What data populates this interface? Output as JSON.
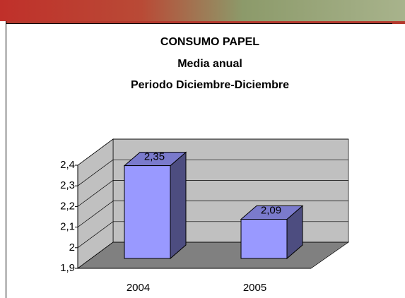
{
  "chart_data": {
    "type": "bar3d",
    "title": "CONSUMO PAPEL",
    "subtitle": [
      "Media anual",
      "Periodo Diciembre-Diciembre"
    ],
    "categories": [
      "2004",
      "2005"
    ],
    "values": [
      2.35,
      2.09
    ],
    "value_labels": [
      "2,35",
      "2,09"
    ],
    "color": "#9999ff",
    "ylim": [
      1.9,
      2.4
    ],
    "yticks": [
      {
        "value": 1.9,
        "label": "1,9"
      },
      2,
      {
        "value": 2.1,
        "label": "2,1"
      },
      {
        "value": 2.2,
        "label": "2,2"
      },
      {
        "value": 2.3,
        "label": "2,3"
      },
      {
        "value": 2.4,
        "label": "2,4"
      }
    ],
    "grid": true
  }
}
